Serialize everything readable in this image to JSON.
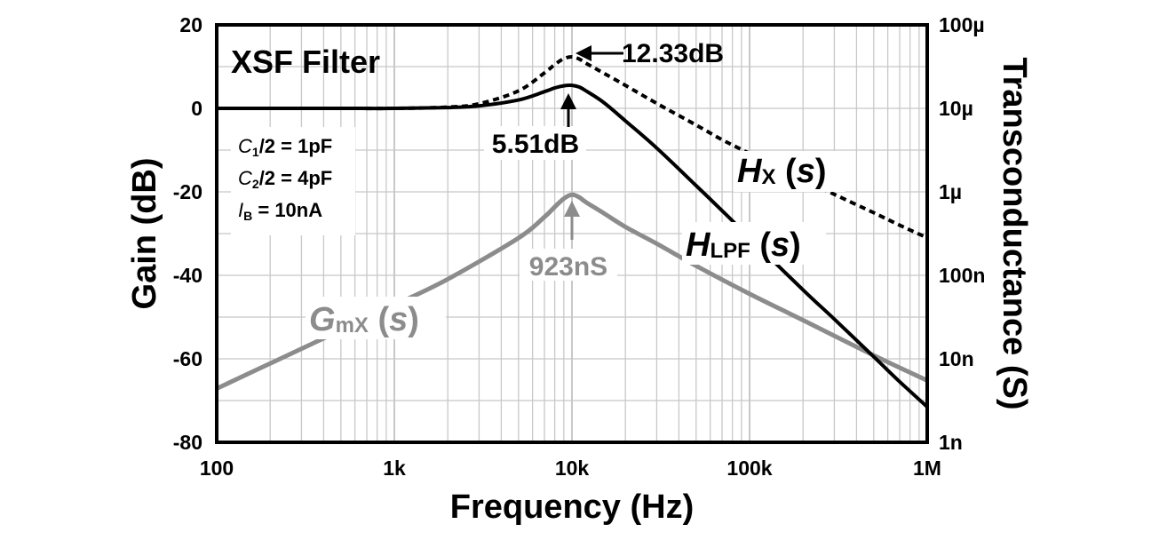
{
  "chart_data": {
    "type": "line",
    "title": "XSF Filter",
    "xlabel": "Frequency (Hz)",
    "ylabel": "Gain (dB)",
    "y2label": "Transconductance (S)",
    "xscale": "log",
    "xlim": [
      100,
      1000000
    ],
    "ylim": [
      -80,
      20
    ],
    "y2scale": "log",
    "y2lim": [
      1e-09,
      0.0001
    ],
    "grid": true,
    "x_ticks": [
      {
        "v": 100,
        "label": "100"
      },
      {
        "v": 1000,
        "label": "1k"
      },
      {
        "v": 10000,
        "label": "10k"
      },
      {
        "v": 100000,
        "label": "100k"
      },
      {
        "v": 1000000,
        "label": "1M"
      }
    ],
    "y_ticks": [
      {
        "v": 20,
        "label": "20"
      },
      {
        "v": 0,
        "label": "0"
      },
      {
        "v": -20,
        "label": "-20"
      },
      {
        "v": -40,
        "label": "-40"
      },
      {
        "v": -60,
        "label": "-60"
      },
      {
        "v": -80,
        "label": "-80"
      }
    ],
    "y2_ticks": [
      {
        "v": 0.0001,
        "label": "100µ"
      },
      {
        "v": 1e-05,
        "label": "10µ"
      },
      {
        "v": 1e-06,
        "label": "1µ"
      },
      {
        "v": 1e-07,
        "label": "100n"
      },
      {
        "v": 1e-08,
        "label": "10n"
      },
      {
        "v": 1e-09,
        "label": "1n"
      }
    ],
    "params": [
      {
        "sym": "C",
        "sub": "1",
        "text": "/2 = 1pF"
      },
      {
        "sym": "C",
        "sub": "2",
        "text": "/2 = 4pF"
      },
      {
        "sym": "I",
        "sub": "B",
        "text": " = 10nA"
      }
    ],
    "series": [
      {
        "name": "HX (s)",
        "axis": "left",
        "color": "#000000",
        "style": "dashed",
        "x": [
          100,
          200,
          500,
          1000,
          2000,
          3000,
          5000,
          7000,
          8000,
          9000,
          10000,
          11000,
          12000,
          15000,
          20000,
          30000,
          50000,
          70000,
          100000,
          200000,
          300000,
          500000,
          700000,
          1000000
        ],
        "y": [
          0,
          0,
          0,
          0,
          0.3,
          1.1,
          4.2,
          8.5,
          10.5,
          11.9,
          12.33,
          11.8,
          10.8,
          8.5,
          5.5,
          1.2,
          -4.0,
          -7.5,
          -10.8,
          -17.0,
          -20.6,
          -25.0,
          -28.0,
          -31.0
        ]
      },
      {
        "name": "HLPF (s)",
        "axis": "left",
        "color": "#000000",
        "style": "solid",
        "x": [
          100,
          200,
          500,
          1000,
          2000,
          3000,
          5000,
          7000,
          8000,
          9000,
          10000,
          11000,
          12000,
          15000,
          20000,
          30000,
          50000,
          70000,
          100000,
          200000,
          300000,
          500000,
          700000,
          1000000
        ],
        "y": [
          0,
          0,
          0,
          0,
          0.2,
          0.6,
          2.0,
          4.0,
          4.9,
          5.4,
          5.51,
          5.1,
          4.2,
          1.5,
          -3.0,
          -9.5,
          -18.5,
          -24.5,
          -31.0,
          -43.5,
          -50.5,
          -59.5,
          -65.5,
          -71.5
        ]
      },
      {
        "name": "GmX (s)",
        "axis": "right",
        "color": "#8c8c8c",
        "style": "solid",
        "x": [
          100,
          200,
          500,
          1000,
          2000,
          5000,
          7000,
          8000,
          9000,
          10000,
          11000,
          12000,
          15000,
          20000,
          30000,
          50000,
          100000,
          200000,
          500000,
          1000000
        ],
        "y": [
          4.4e-09,
          8.8e-09,
          2.2e-08,
          4.4e-08,
          9e-08,
          2.8e-07,
          5e-07,
          6.6e-07,
          8.3e-07,
          9.23e-07,
          8.6e-07,
          7.5e-07,
          5.6e-07,
          3.8e-07,
          2.4e-07,
          1.3e-07,
          6e-08,
          2.9e-08,
          1.1e-08,
          5.5e-09
        ]
      }
    ],
    "annotations": {
      "hx_peak": "12.33dB",
      "hlpf_peak": "5.51dB",
      "gmx_peak": "923nS"
    }
  }
}
